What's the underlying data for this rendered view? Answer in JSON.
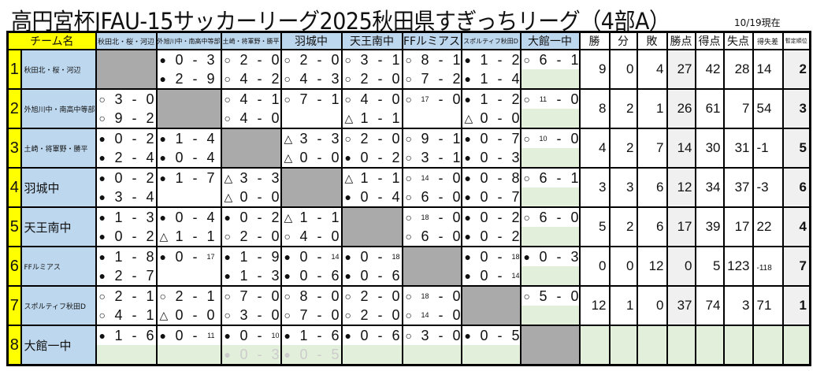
{
  "title": "高円宮杯JFAU-15サッカーリーグ2025秋田県すぎっちリーグ（4部A）",
  "as_of": "10/19現在",
  "headers": {
    "team": "チーム名",
    "opponents": [
      "秋田北・桜・河辺",
      "外旭川中・南高中等部",
      "土崎・将軍野・勝平",
      "羽城中",
      "天王南中",
      "FFルミアス",
      "スポルティフ秋田D",
      "大館一中"
    ],
    "stats": [
      "勝",
      "分",
      "敗",
      "勝点",
      "得点",
      "失点",
      "得失差",
      "暫定順位"
    ]
  },
  "colors": {
    "header_team": "#ffff00",
    "header_opponent": "#bdd7ee",
    "self_cell": "#aaaaaa",
    "unplayed": "#e2efda",
    "stat_highlight": "#f0f0f0"
  },
  "legend_marks": {
    "win": "○",
    "loss": "●",
    "draw": "△"
  },
  "teams": [
    {
      "num": "1",
      "name": "秋田北・桜・河辺",
      "results": [
        null,
        [
          [
            "●",
            "0",
            "3"
          ],
          [
            "●",
            "2",
            "9"
          ]
        ],
        [
          [
            "○",
            "2",
            "0"
          ],
          [
            "○",
            "4",
            "2"
          ]
        ],
        [
          [
            "○",
            "2",
            "0"
          ],
          [
            "○",
            "4",
            "3"
          ]
        ],
        [
          [
            "○",
            "3",
            "1"
          ],
          [
            "○",
            "2",
            "0"
          ]
        ],
        [
          [
            "○",
            "8",
            "1"
          ],
          [
            "○",
            "7",
            "2"
          ]
        ],
        [
          [
            "●",
            "1",
            "2"
          ],
          [
            "●",
            "1",
            "4"
          ]
        ],
        [
          [
            "○",
            "6",
            "1"
          ],
          "green"
        ]
      ],
      "stats": [
        "9",
        "0",
        "4",
        "27",
        "42",
        "28",
        "14",
        "2"
      ]
    },
    {
      "num": "2",
      "name": "外旭川中・南高中等部",
      "results": [
        [
          [
            "○",
            "3",
            "0"
          ],
          [
            "○",
            "9",
            "2"
          ]
        ],
        null,
        [
          [
            "○",
            "4",
            "1"
          ],
          [
            "○",
            "4",
            "0"
          ]
        ],
        [
          [
            "○",
            "7",
            "1"
          ],
          ""
        ],
        [
          [
            "○",
            "4",
            "0"
          ],
          [
            "△",
            "1",
            "1"
          ]
        ],
        [
          [
            "○",
            "17",
            "0"
          ],
          ""
        ],
        [
          [
            "●",
            "1",
            "2"
          ],
          [
            "△",
            "0",
            "0"
          ]
        ],
        [
          [
            "○",
            "11",
            "0"
          ],
          "green"
        ]
      ],
      "stats": [
        "8",
        "2",
        "1",
        "26",
        "61",
        "7",
        "54",
        "3"
      ]
    },
    {
      "num": "3",
      "name": "土崎・将軍野・勝平",
      "results": [
        [
          [
            "●",
            "0",
            "2"
          ],
          [
            "●",
            "2",
            "4"
          ]
        ],
        [
          [
            "●",
            "1",
            "4"
          ],
          [
            "●",
            "0",
            "4"
          ]
        ],
        null,
        [
          [
            "△",
            "3",
            "3"
          ],
          [
            "△",
            "0",
            "0"
          ]
        ],
        [
          [
            "○",
            "2",
            "0"
          ],
          [
            "●",
            "0",
            "2"
          ]
        ],
        [
          [
            "○",
            "9",
            "1"
          ],
          [
            "○",
            "3",
            "1"
          ]
        ],
        [
          [
            "●",
            "0",
            "7"
          ],
          [
            "●",
            "0",
            "3"
          ]
        ],
        [
          [
            "○",
            "10",
            "0"
          ],
          "green"
        ]
      ],
      "stats": [
        "4",
        "2",
        "7",
        "14",
        "30",
        "31",
        "-1",
        "5"
      ]
    },
    {
      "num": "4",
      "name": "羽城中",
      "results": [
        [
          [
            "●",
            "0",
            "2"
          ],
          [
            "●",
            "3",
            "4"
          ]
        ],
        [
          [
            "●",
            "1",
            "7"
          ],
          ""
        ],
        [
          [
            "△",
            "3",
            "3"
          ],
          [
            "△",
            "0",
            "0"
          ]
        ],
        null,
        [
          [
            "△",
            "1",
            "1"
          ],
          [
            "●",
            "0",
            "4"
          ]
        ],
        [
          [
            "○",
            "14",
            "0"
          ],
          [
            "○",
            "6",
            "0"
          ]
        ],
        [
          [
            "●",
            "0",
            "8"
          ],
          [
            "●",
            "0",
            "7"
          ]
        ],
        [
          [
            "○",
            "6",
            "1"
          ],
          "green"
        ]
      ],
      "stats": [
        "3",
        "3",
        "6",
        "12",
        "34",
        "37",
        "-3",
        "6"
      ]
    },
    {
      "num": "5",
      "name": "天王南中",
      "results": [
        [
          [
            "●",
            "1",
            "3"
          ],
          [
            "●",
            "0",
            "2"
          ]
        ],
        [
          [
            "●",
            "0",
            "4"
          ],
          [
            "△",
            "1",
            "1"
          ]
        ],
        [
          [
            "●",
            "0",
            "2"
          ],
          [
            "○",
            "2",
            "0"
          ]
        ],
        [
          [
            "△",
            "1",
            "1"
          ],
          [
            "○",
            "4",
            "0"
          ]
        ],
        null,
        [
          [
            "○",
            "18",
            "0"
          ],
          [
            "○",
            "6",
            "0"
          ]
        ],
        [
          [
            "●",
            "0",
            "2"
          ],
          [
            "●",
            "0",
            "2"
          ]
        ],
        [
          [
            "○",
            "6",
            "0"
          ],
          "green"
        ]
      ],
      "stats": [
        "5",
        "2",
        "6",
        "17",
        "39",
        "17",
        "22",
        "4"
      ]
    },
    {
      "num": "6",
      "name": "FFルミアス",
      "results": [
        [
          [
            "●",
            "1",
            "8"
          ],
          [
            "●",
            "2",
            "7"
          ]
        ],
        [
          [
            "●",
            "0",
            "17"
          ],
          ""
        ],
        [
          [
            "●",
            "1",
            "9"
          ],
          [
            "●",
            "1",
            "3"
          ]
        ],
        [
          [
            "●",
            "0",
            "14"
          ],
          [
            "●",
            "0",
            "6"
          ]
        ],
        [
          [
            "●",
            "0",
            "18"
          ],
          [
            "●",
            "0",
            "6"
          ]
        ],
        null,
        [
          [
            "●",
            "0",
            "18"
          ],
          [
            "●",
            "0",
            "14"
          ]
        ],
        [
          [
            "●",
            "0",
            "3"
          ],
          "green"
        ]
      ],
      "stats": [
        "0",
        "0",
        "12",
        "0",
        "5",
        "123",
        "-118",
        "7"
      ]
    },
    {
      "num": "7",
      "name": "スポルティフ秋田D",
      "results": [
        [
          [
            "○",
            "2",
            "1"
          ],
          [
            "○",
            "4",
            "1"
          ]
        ],
        [
          [
            "○",
            "2",
            "1"
          ],
          [
            "△",
            "0",
            "0"
          ]
        ],
        [
          [
            "○",
            "7",
            "0"
          ],
          [
            "○",
            "3",
            "0"
          ]
        ],
        [
          [
            "○",
            "8",
            "0"
          ],
          [
            "○",
            "7",
            "0"
          ]
        ],
        [
          [
            "○",
            "2",
            "0"
          ],
          [
            "○",
            "2",
            "0"
          ]
        ],
        [
          [
            "○",
            "18",
            "0"
          ],
          [
            "○",
            "14",
            "0"
          ]
        ],
        null,
        [
          [
            "○",
            "5",
            "0"
          ],
          "green"
        ]
      ],
      "stats": [
        "12",
        "1",
        "0",
        "37",
        "74",
        "3",
        "71",
        "1"
      ]
    },
    {
      "num": "8",
      "name": "大館一中",
      "results": [
        [
          [
            "●",
            "1",
            "6"
          ],
          "green"
        ],
        [
          [
            "●",
            "0",
            "11"
          ],
          "green"
        ],
        [
          [
            "●",
            "0",
            "10"
          ],
          [
            "●",
            "0",
            "3",
            "faint"
          ]
        ],
        [
          [
            "●",
            "1",
            "6"
          ],
          [
            "●",
            "0",
            "5",
            "faint"
          ]
        ],
        [
          [
            "●",
            "0",
            "6"
          ],
          "green"
        ],
        [
          [
            "○",
            "3",
            "0"
          ],
          "green"
        ],
        [
          [
            "●",
            "0",
            "5"
          ],
          "green"
        ],
        null
      ],
      "stats": [
        "",
        "",
        "",
        "",
        "",
        "",
        "",
        ""
      ]
    }
  ]
}
